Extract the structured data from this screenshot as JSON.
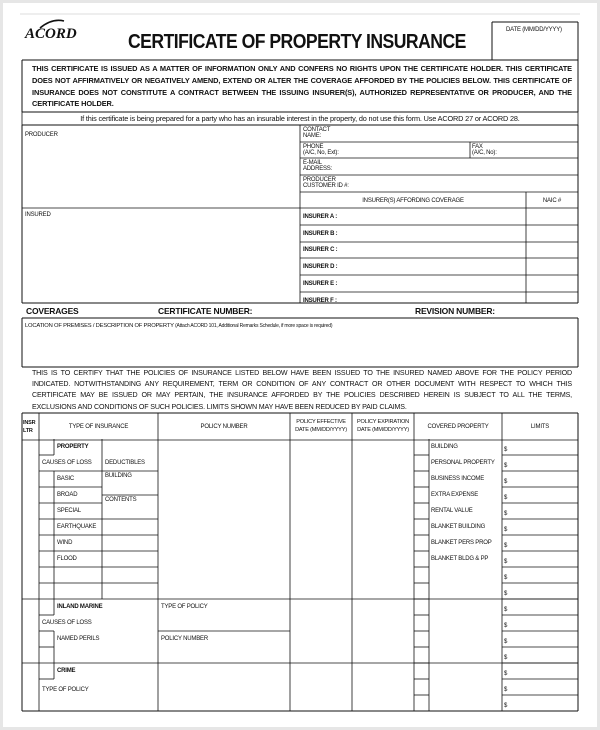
{
  "header": {
    "logo": "ACORD",
    "title": "CERTIFICATE OF PROPERTY INSURANCE",
    "date_label": "DATE (MM/DD/YYYY)"
  },
  "notice": "THIS CERTIFICATE IS ISSUED AS A MATTER OF INFORMATION ONLY AND CONFERS NO RIGHTS UPON THE CERTIFICATE HOLDER. THIS CERTIFICATE DOES NOT AFFIRMATIVELY OR NEGATIVELY AMEND, EXTEND OR ALTER THE COVERAGE AFFORDED BY THE POLICIES BELOW. THIS CERTIFICATE OF INSURANCE DOES NOT CONSTITUTE A CONTRACT BETWEEN THE ISSUING INSURER(S), AUTHORIZED REPRESENTATIVE OR PRODUCER, AND THE CERTIFICATE HOLDER.",
  "interest_note": "If this certificate is being prepared for a party who has an insurable interest in the property, do not use this form.  Use ACORD 27 or ACORD 28.",
  "producer": {
    "label": "PRODUCER",
    "contact_1": "CONTACT",
    "contact_2": "NAME:",
    "phone_1": "PHONE",
    "phone_2": "(A/C, No, Ext):",
    "fax_1": "FAX",
    "fax_2": "(A/C, No):",
    "email_1": "E-MAIL",
    "email_2": "ADDRESS:",
    "cust_1": "PRODUCER",
    "cust_2": "CUSTOMER ID #:"
  },
  "insurers": {
    "header": "INSURER(S) AFFORDING COVERAGE",
    "naic": "NAIC #",
    "list": [
      "INSURER A :",
      "INSURER B :",
      "INSURER C :",
      "INSURER D :",
      "INSURER E :",
      "INSURER F :"
    ]
  },
  "insured_label": "INSURED",
  "coverages": {
    "label": "COVERAGES",
    "cert_number": "CERTIFICATE NUMBER:",
    "revision_number": "REVISION NUMBER:"
  },
  "location_label": "LOCATION OF PREMISES / DESCRIPTION OF PROPERTY",
  "location_note": "(Attach ACORD 101, Additional Remarks Schedule, if more space is required)",
  "certify": "THIS IS TO CERTIFY THAT THE POLICIES OF INSURANCE LISTED BELOW HAVE BEEN ISSUED TO THE INSURED NAMED ABOVE FOR THE POLICY PERIOD INDICATED. NOTWITHSTANDING ANY REQUIREMENT, TERM OR CONDITION OF ANY CONTRACT OR OTHER DOCUMENT WITH RESPECT TO WHICH THIS CERTIFICATE MAY BE ISSUED OR MAY PERTAIN, THE INSURANCE AFFORDED BY THE POLICIES DESCRIBED HEREIN IS SUBJECT TO ALL THE TERMS, EXCLUSIONS AND CONDITIONS OF SUCH POLICIES. LIMITS SHOWN MAY HAVE BEEN REDUCED BY PAID CLAIMS.",
  "table": {
    "headers": {
      "insr_1": "INSR",
      "insr_2": "LTR",
      "type": "TYPE OF INSURANCE",
      "policy_number": "POLICY NUMBER",
      "eff_1": "POLICY EFFECTIVE",
      "eff_2": "DATE (MM/DD/YYYY)",
      "exp_1": "POLICY EXPIRATION",
      "exp_2": "DATE (MM/DD/YYYY)",
      "covered": "COVERED PROPERTY",
      "limits": "LIMITS"
    },
    "property": {
      "label": "PROPERTY",
      "causes": "CAUSES OF LOSS",
      "deductibles": "DEDUCTIBLES",
      "building": "BUILDING",
      "contents": "CONTENTS",
      "perils": [
        "BASIC",
        "BROAD",
        "SPECIAL",
        "EARTHQUAKE",
        "WIND",
        "FLOOD"
      ]
    },
    "inland_marine": {
      "label": "INLAND MARINE",
      "causes": "CAUSES OF LOSS",
      "named_perils": "NAMED PERILS",
      "type_of_policy": "TYPE OF POLICY",
      "policy_number": "POLICY NUMBER"
    },
    "crime": {
      "label": "CRIME",
      "type_of_policy": "TYPE OF POLICY"
    },
    "covered_property": [
      "BUILDING",
      "PERSONAL PROPERTY",
      "BUSINESS INCOME",
      "EXTRA EXPENSE",
      "RENTAL VALUE",
      "BLANKET BUILDING",
      "BLANKET PERS PROP",
      "BLANKET BLDG & PP"
    ],
    "currency": "$"
  }
}
